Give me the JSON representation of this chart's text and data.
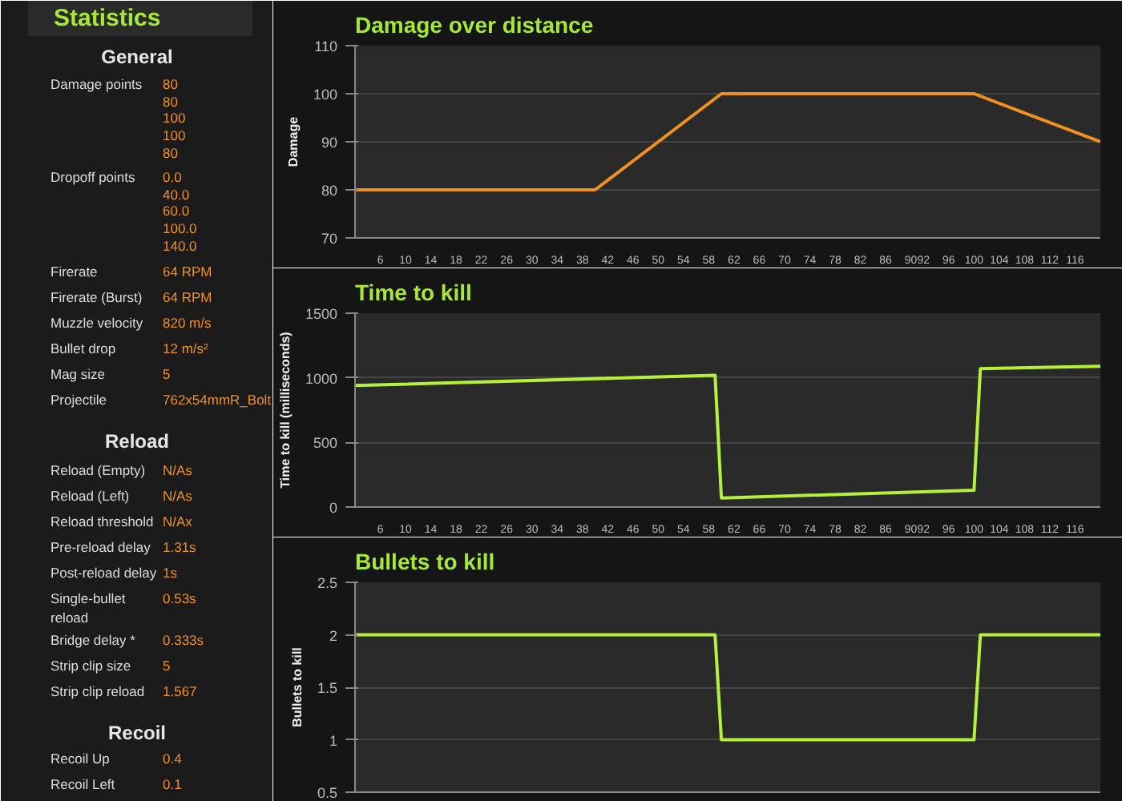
{
  "chart_data": [
    {
      "type": "other",
      "title": "Statistics",
      "annotations": [
        "General",
        "Damage points",
        "80",
        "80",
        "100",
        "100",
        "80",
        "Dropoff points",
        "0.0",
        "40.0",
        "60.0",
        "100.0",
        "140.0",
        "Firerate",
        "64 RPM",
        "Firerate (Burst)",
        "64 RPM",
        "Muzzle velocity",
        "820 m/s",
        "Bullet drop",
        "12 m/s²",
        "Mag size",
        "5",
        "Projectile",
        "762x54mmR_Bolt",
        "Reload",
        "Reload (Empty)",
        "N/As",
        "Reload (Left)",
        "N/As",
        "Reload threshold",
        "N/Ax",
        "Pre-reload delay",
        "1.31s",
        "Post-reload delay",
        "1s",
        "Single-bullet reload",
        "0.53s",
        "Bridge delay *",
        "0.333s",
        "Strip clip size",
        "5",
        "Strip clip reload",
        "1.567",
        "Recoil",
        "Recoil Up",
        "0.4",
        "Recoil Left",
        "0.1"
      ]
    },
    {
      "type": "line",
      "title": "Damage over distance",
      "ylabel": "Damage",
      "xlim": [
        2,
        120
      ],
      "ylim": [
        70,
        110
      ],
      "yticks": [
        70,
        80,
        90,
        100,
        110
      ],
      "xticks": [
        6,
        10,
        14,
        18,
        22,
        26,
        30,
        34,
        38,
        42,
        46,
        50,
        54,
        58,
        62,
        66,
        70,
        74,
        78,
        82,
        86,
        90,
        92,
        96,
        100,
        104,
        108,
        112,
        116
      ],
      "grid": "y",
      "series": [
        {
          "color": "#f0901e",
          "x": [
            2,
            40,
            60,
            100,
            120
          ],
          "values": [
            80,
            80,
            100,
            100,
            90
          ]
        }
      ]
    },
    {
      "type": "line",
      "title": "Time to kill",
      "ylabel": "Time to kill (milliseconds)",
      "xlim": [
        2,
        120
      ],
      "ylim": [
        0,
        1500
      ],
      "yticks": [
        0,
        500,
        1000,
        1500
      ],
      "xticks": [
        6,
        10,
        14,
        18,
        22,
        26,
        30,
        34,
        38,
        42,
        46,
        50,
        54,
        58,
        62,
        66,
        70,
        74,
        78,
        82,
        86,
        90,
        92,
        96,
        100,
        104,
        108,
        112,
        116
      ],
      "grid": "y",
      "series": [
        {
          "color": "#b4f03c",
          "x": [
            2,
            59,
            60,
            100,
            101,
            120
          ],
          "values": [
            940,
            1020,
            70,
            130,
            1070,
            1090
          ]
        }
      ]
    },
    {
      "type": "line",
      "title": "Bullets to kill",
      "ylabel": "Bullets to kill",
      "xlim": [
        2,
        120
      ],
      "ylim": [
        0.5,
        2.5
      ],
      "yticks": [
        0.5,
        1,
        1.5,
        2,
        2.5
      ],
      "grid": "y",
      "tick_labels": "y",
      "series": [
        {
          "color": "#b4f03c",
          "x": [
            2,
            59,
            60,
            100,
            101,
            120
          ],
          "values": [
            2,
            2,
            1,
            1,
            2,
            2
          ]
        }
      ]
    }
  ]
}
